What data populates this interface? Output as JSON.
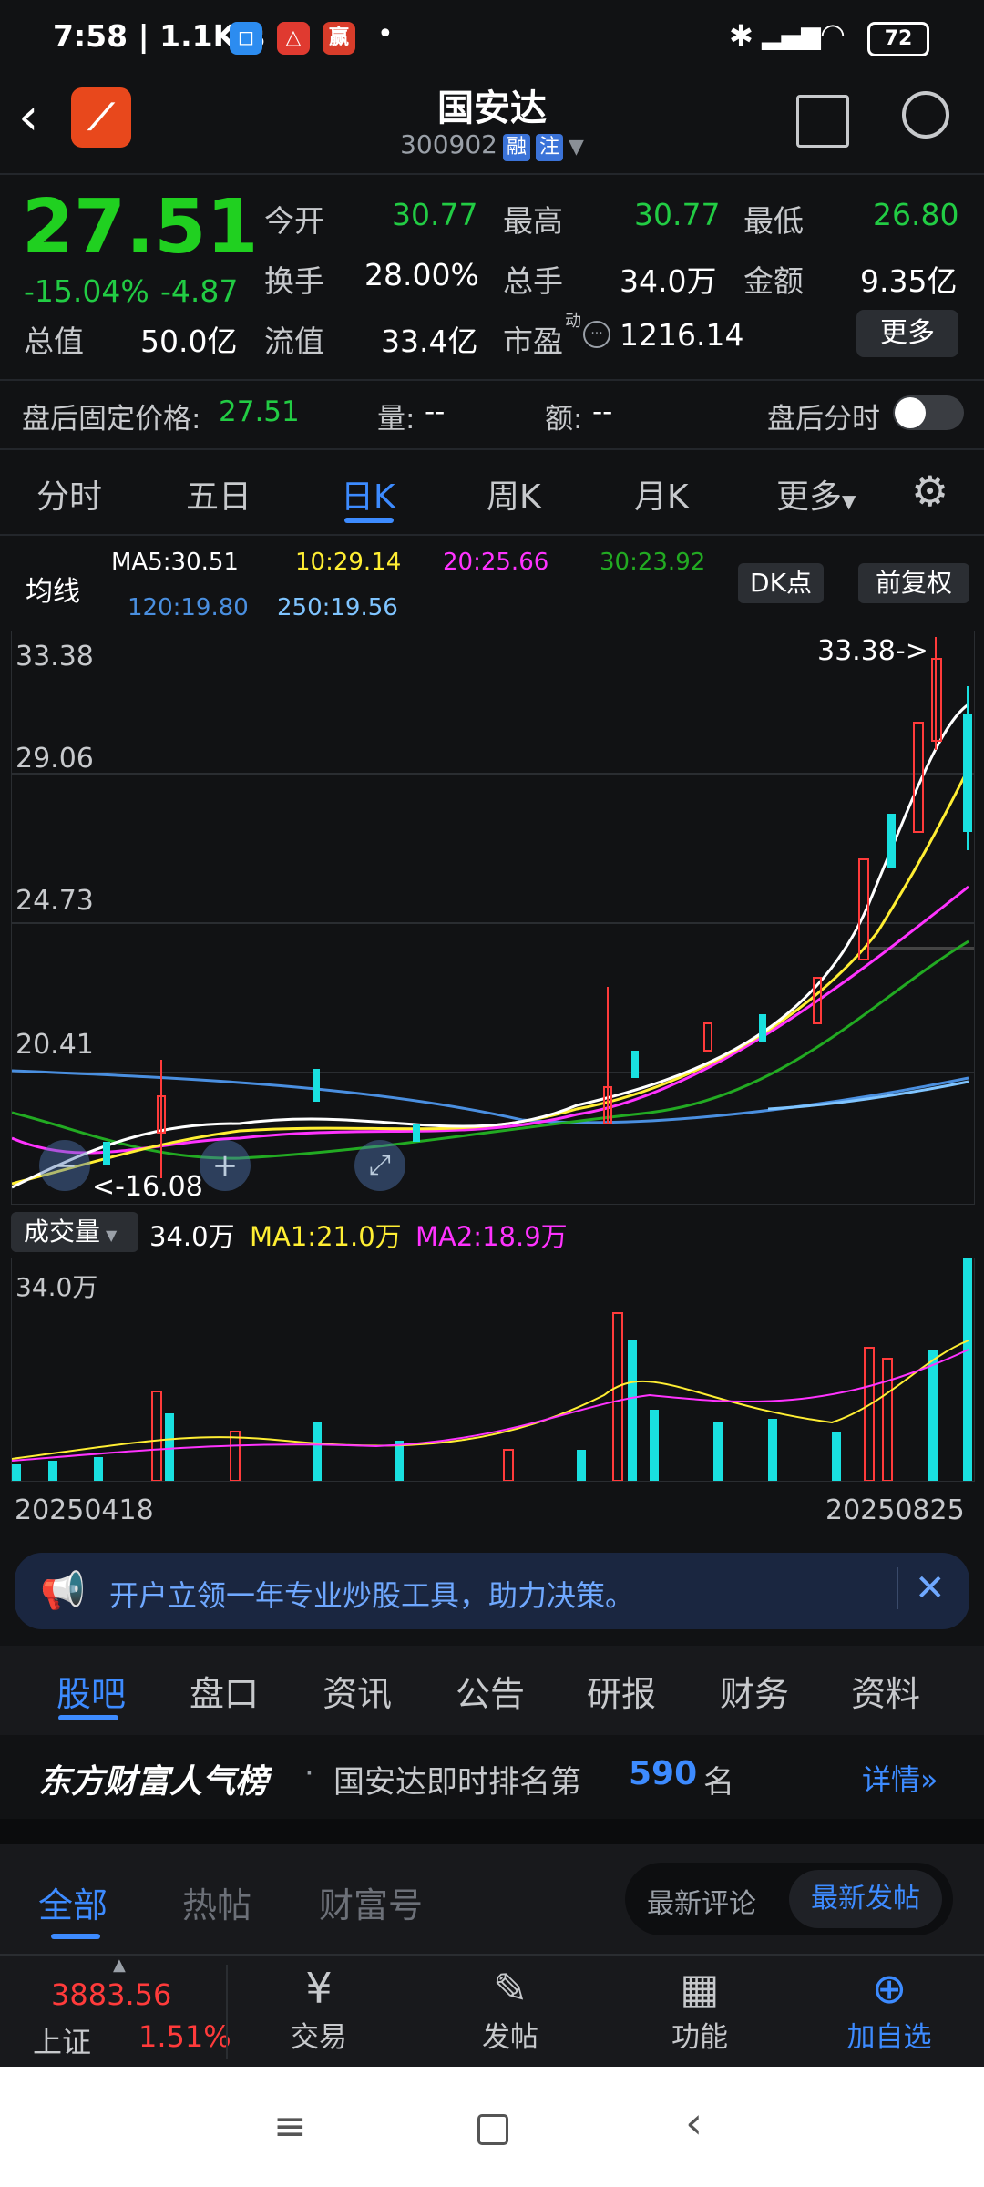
{
  "status_bar": {
    "time": "7:58 | 1.1K/s",
    "dot": "•",
    "battery": "72"
  },
  "header": {
    "title": "国安达",
    "code": "300902",
    "tag1": "融",
    "tag2": "注"
  },
  "quote": {
    "price": "27.51",
    "change_pct": "-15.04%",
    "change": "-4.87",
    "open_label": "今开",
    "open": "30.77",
    "high_label": "最高",
    "high": "30.77",
    "low_label": "最低",
    "low": "26.80",
    "turnover_label": "换手",
    "turnover": "28.00%",
    "volume_label": "总手",
    "volume": "34.0万",
    "amount_label": "金额",
    "amount": "9.35亿",
    "mcap_label": "总值",
    "mcap": "50.0亿",
    "float_label": "流值",
    "float": "33.4亿",
    "pe_label": "市盈",
    "pe_sup": "动",
    "pe": "1216.14",
    "more_label": "更多"
  },
  "after_hours": {
    "label": "盘后固定价格:",
    "price": "27.51",
    "vol_label": "量:",
    "vol": "--",
    "amt_label": "额:",
    "amt": "--",
    "toggle_label": "盘后分时"
  },
  "chart_tabs": [
    "分时",
    "五日",
    "日K",
    "周K",
    "月K",
    "更多"
  ],
  "ma_legend": {
    "title": "均线",
    "ma5": "MA5:30.51",
    "ma10": "10:29.14",
    "ma20": "20:25.66",
    "ma30": "30:23.92",
    "ma120": "120:19.80",
    "ma250": "250:19.56",
    "dk_label": "DK点",
    "adjust_label": "前复权"
  },
  "price_axis": [
    "33.38",
    "29.06",
    "24.73",
    "20.41"
  ],
  "high_marker": "33.38->",
  "low_marker": "<-16.08",
  "volume_legend": {
    "selector": "成交量",
    "vol": "34.0万",
    "ma1": "MA1:21.0万",
    "ma2": "MA2:18.9万",
    "axis_max": "34.0万"
  },
  "dates": {
    "start": "20250418",
    "end": "20250825"
  },
  "banner": {
    "text": "开户立领一年专业炒股工具，助力决策。"
  },
  "bottom_tabs": [
    "股吧",
    "盘口",
    "资讯",
    "公告",
    "研报",
    "财务",
    "资料"
  ],
  "ranking": {
    "brand": "东方财富人气榜",
    "sep": "·",
    "text": "国安达即时排名第",
    "rank": "590",
    "unit": "名",
    "details": "详情"
  },
  "post_tabs": [
    "全部",
    "热帖",
    "财富号"
  ],
  "sort_options": [
    "最新评论",
    "最新发帖"
  ],
  "nav": {
    "index_value": "3883.56",
    "index_name": "上证",
    "index_change": "1.51%",
    "trade": "交易",
    "post": "发帖",
    "functions": "功能",
    "add": "加自选"
  },
  "colors": {
    "up": "#ff3b3b",
    "down": "#19e0e0",
    "accent": "#3d8bff",
    "ma5": "#ffffff",
    "ma10": "#ffee33",
    "ma20": "#ff33ff",
    "ma30": "#22aa22",
    "ma120": "#4a8fe0",
    "ma250": "#7fc4ff"
  }
}
